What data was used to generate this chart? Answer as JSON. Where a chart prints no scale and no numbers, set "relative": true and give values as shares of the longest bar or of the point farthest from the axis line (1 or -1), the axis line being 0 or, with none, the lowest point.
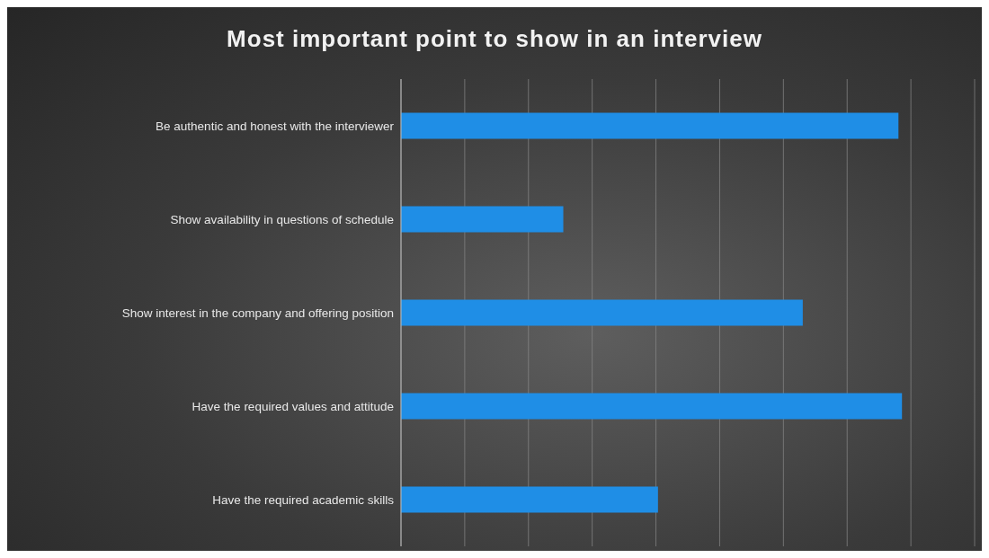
{
  "chart_data": {
    "type": "bar",
    "orientation": "horizontal",
    "relative": true,
    "title": "Most important point to show in an interview",
    "categories": [
      "Be authentic and honest with the interviewer",
      "Show availability in questions of schedule",
      "Show interest in the company and offering position",
      "Have the required values and attitude",
      "Have the required academic skills"
    ],
    "values": [
      0.993,
      0.324,
      0.802,
      1,
      0.513
    ],
    "color": "#1f8ee6",
    "grid": "x"
  }
}
